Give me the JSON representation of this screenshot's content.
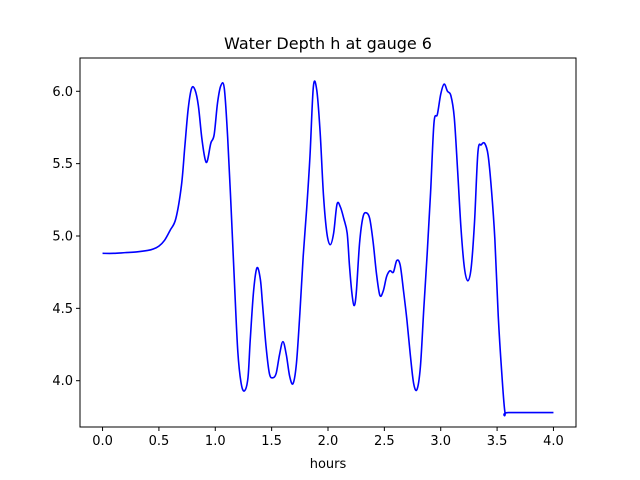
{
  "chart_data": {
    "type": "line",
    "title": "Water Depth h at gauge 6",
    "xlabel": "hours",
    "ylabel": "",
    "xlim": [
      -0.2,
      4.2
    ],
    "ylim": [
      3.68,
      6.23
    ],
    "x_ticks": [
      0.0,
      0.5,
      1.0,
      1.5,
      2.0,
      2.5,
      3.0,
      3.5,
      4.0
    ],
    "x_tick_labels": [
      "0.0",
      "0.5",
      "1.0",
      "1.5",
      "2.0",
      "2.5",
      "3.0",
      "3.5",
      "4.0"
    ],
    "y_ticks": [
      4.0,
      4.5,
      5.0,
      5.5,
      6.0
    ],
    "y_tick_labels": [
      "4.0",
      "4.5",
      "5.0",
      "5.5",
      "6.0"
    ],
    "grid": false,
    "legend": "none",
    "series": [
      {
        "color": "#0000ff",
        "x": [
          0.0,
          0.1,
          0.2,
          0.3,
          0.4,
          0.45,
          0.5,
          0.55,
          0.6,
          0.65,
          0.7,
          0.73,
          0.76,
          0.79,
          0.82,
          0.85,
          0.88,
          0.91,
          0.93,
          0.96,
          0.99,
          1.02,
          1.05,
          1.08,
          1.11,
          1.14,
          1.17,
          1.2,
          1.23,
          1.26,
          1.29,
          1.31,
          1.34,
          1.37,
          1.4,
          1.42,
          1.45,
          1.48,
          1.51,
          1.54,
          1.57,
          1.6,
          1.63,
          1.66,
          1.69,
          1.72,
          1.75,
          1.78,
          1.81,
          1.84,
          1.87,
          1.9,
          1.93,
          1.96,
          1.99,
          2.02,
          2.05,
          2.08,
          2.11,
          2.14,
          2.17,
          2.19,
          2.21,
          2.23,
          2.25,
          2.28,
          2.31,
          2.34,
          2.37,
          2.4,
          2.43,
          2.46,
          2.49,
          2.52,
          2.55,
          2.58,
          2.61,
          2.64,
          2.67,
          2.7,
          2.73,
          2.76,
          2.79,
          2.82,
          2.85,
          2.88,
          2.91,
          2.94,
          2.97,
          3.0,
          3.03,
          3.06,
          3.09,
          3.12,
          3.15,
          3.18,
          3.21,
          3.24,
          3.27,
          3.3,
          3.33,
          3.36,
          3.39,
          3.42,
          3.45,
          3.48,
          3.51,
          3.54,
          3.57,
          3.6,
          3.63,
          3.66,
          3.69,
          3.72,
          3.75,
          3.78,
          3.81,
          3.84,
          3.87,
          3.9,
          3.93,
          3.96,
          4.0
        ],
        "y": [
          4.88,
          4.88,
          4.885,
          4.89,
          4.9,
          4.91,
          4.93,
          4.97,
          5.04,
          5.12,
          5.35,
          5.62,
          5.88,
          6.02,
          6.01,
          5.9,
          5.68,
          5.53,
          5.52,
          5.64,
          5.7,
          5.92,
          6.04,
          6.02,
          5.68,
          5.2,
          4.68,
          4.2,
          3.98,
          3.93,
          4.02,
          4.28,
          4.62,
          4.78,
          4.7,
          4.52,
          4.24,
          4.05,
          4.02,
          4.05,
          4.18,
          4.27,
          4.18,
          4.03,
          3.98,
          4.12,
          4.46,
          4.86,
          5.18,
          5.55,
          6.03,
          6.01,
          5.72,
          5.28,
          5.02,
          4.94,
          5.02,
          5.22,
          5.2,
          5.12,
          5.02,
          4.8,
          4.62,
          4.52,
          4.6,
          4.95,
          5.13,
          5.16,
          5.12,
          4.96,
          4.74,
          4.59,
          4.62,
          4.72,
          4.76,
          4.75,
          4.83,
          4.8,
          4.62,
          4.42,
          4.18,
          3.98,
          3.94,
          4.1,
          4.5,
          4.88,
          5.3,
          5.78,
          5.84,
          5.98,
          6.05,
          6.0,
          5.97,
          5.82,
          5.45,
          5.05,
          4.78,
          4.69,
          4.78,
          5.1,
          5.58,
          5.63,
          5.64,
          5.56,
          5.32,
          4.98,
          4.45,
          4.07,
          3.78,
          3.78,
          3.78,
          3.78,
          3.78,
          3.78,
          3.78,
          3.78,
          3.78,
          3.78,
          3.78,
          3.78,
          3.78,
          3.78,
          3.78
        ]
      }
    ]
  }
}
